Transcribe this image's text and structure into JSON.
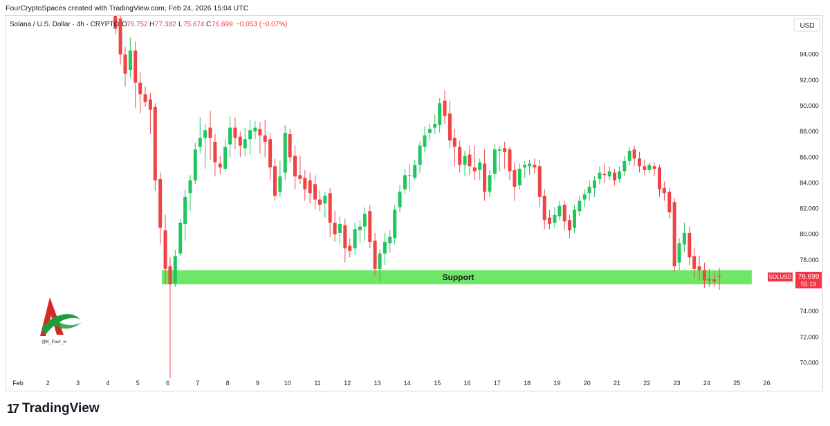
{
  "header": {
    "created_by": "FourCryptoSpaces created with TradingView.com, Feb 24, 2026 15:04 UTC"
  },
  "legend": {
    "symbol": "Solana / U.S. Dollar · 4h · CRYPTO",
    "o_label": "O",
    "o_value": "76.752",
    "h_label": "H",
    "h_value": "77.382",
    "l_label": "L",
    "l_value": "75.674",
    "c_label": "C",
    "c_value": "76.699",
    "change": "−0.053 (−0.07%)"
  },
  "currency_button": "USD",
  "price_tag": {
    "symbol": "SOLUSD",
    "price": "76.699",
    "countdown": "55:19"
  },
  "support_label": "Support",
  "watermark_handle": "@K_Four_iv",
  "footer_brand": "TradingView",
  "colors": {
    "up": "#22c55e",
    "down": "#ef4444",
    "support_zone": "#6ee766",
    "price_tag_bg": "#f23645"
  },
  "chart_data": {
    "type": "candlestick",
    "title": "Solana / U.S. Dollar · 4h · CRYPTO",
    "timeframe": "4h",
    "ylim": [
      69,
      97
    ],
    "y_ticks": [
      "94.000",
      "92.000",
      "90.000",
      "88.000",
      "86.000",
      "84.000",
      "82.000",
      "80.000",
      "78.000",
      "76.000",
      "74.000",
      "72.000",
      "70.000"
    ],
    "x_ticks": [
      "Feb",
      "2",
      "3",
      "4",
      "5",
      "6",
      "7",
      "8",
      "9",
      "10",
      "11",
      "12",
      "13",
      "14",
      "15",
      "16",
      "17",
      "18",
      "19",
      "20",
      "21",
      "22",
      "23",
      "24",
      "25",
      "26"
    ],
    "x_tick_days": [
      1,
      2,
      3,
      4,
      5,
      6,
      7,
      8,
      9,
      10,
      11,
      12,
      13,
      14,
      15,
      16,
      17,
      18,
      19,
      20,
      21,
      22,
      23,
      24,
      25,
      26
    ],
    "support_zone": {
      "low": 76.1,
      "high": 77.2,
      "start_day": 5.8,
      "end_day": 25.5
    },
    "last_price": 76.699,
    "candles": [
      {
        "d": 4.25,
        "o": 97.0,
        "h": 97.0,
        "c": 96.0,
        "l": 95.6
      },
      {
        "d": 4.42,
        "o": 96.8,
        "h": 97.0,
        "c": 94.0,
        "l": 93.2
      },
      {
        "d": 4.58,
        "o": 94.0,
        "h": 94.6,
        "c": 92.5,
        "l": 91.5
      },
      {
        "d": 4.75,
        "o": 92.8,
        "h": 95.3,
        "c": 94.3,
        "l": 92.2
      },
      {
        "d": 4.92,
        "o": 94.3,
        "h": 95.0,
        "c": 91.8,
        "l": 89.8
      },
      {
        "d": 5.08,
        "o": 91.8,
        "h": 92.6,
        "c": 90.9,
        "l": 89.4
      },
      {
        "d": 5.25,
        "o": 90.9,
        "h": 91.5,
        "c": 90.3,
        "l": 89.9
      },
      {
        "d": 5.42,
        "o": 90.5,
        "h": 91.0,
        "c": 89.7,
        "l": 87.8
      },
      {
        "d": 5.58,
        "o": 89.9,
        "h": 90.2,
        "c": 84.2,
        "l": 83.4
      },
      {
        "d": 5.75,
        "o": 84.3,
        "h": 84.8,
        "c": 80.5,
        "l": 79.2
      },
      {
        "d": 5.92,
        "o": 80.3,
        "h": 81.5,
        "c": 77.3,
        "l": 76.1
      },
      {
        "d": 6.08,
        "o": 77.5,
        "h": 78.2,
        "c": 76.1,
        "l": 68.8
      },
      {
        "d": 6.25,
        "o": 76.2,
        "h": 78.8,
        "c": 78.3,
        "l": 75.9
      },
      {
        "d": 6.42,
        "o": 78.5,
        "h": 81.2,
        "c": 80.9,
        "l": 78.3
      },
      {
        "d": 6.58,
        "o": 80.8,
        "h": 83.5,
        "c": 82.9,
        "l": 79.5
      },
      {
        "d": 6.75,
        "o": 83.2,
        "h": 84.6,
        "c": 84.2,
        "l": 81.8
      },
      {
        "d": 6.92,
        "o": 84.2,
        "h": 87.1,
        "c": 86.6,
        "l": 83.9
      },
      {
        "d": 7.08,
        "o": 86.8,
        "h": 89.1,
        "c": 87.5,
        "l": 86.3
      },
      {
        "d": 7.25,
        "o": 87.5,
        "h": 88.6,
        "c": 88.1,
        "l": 85.1
      },
      {
        "d": 7.42,
        "o": 88.3,
        "h": 89.6,
        "c": 87.5,
        "l": 85.8
      },
      {
        "d": 7.58,
        "o": 87.2,
        "h": 87.8,
        "c": 85.6,
        "l": 84.5
      },
      {
        "d": 7.75,
        "o": 85.5,
        "h": 86.1,
        "c": 85.2,
        "l": 84.7
      },
      {
        "d": 7.92,
        "o": 85.1,
        "h": 87.4,
        "c": 86.8,
        "l": 84.9
      },
      {
        "d": 8.08,
        "o": 87.0,
        "h": 89.2,
        "c": 88.3,
        "l": 86.0
      },
      {
        "d": 8.25,
        "o": 88.3,
        "h": 89.1,
        "c": 87.5,
        "l": 86.6
      },
      {
        "d": 8.42,
        "o": 87.6,
        "h": 88.0,
        "c": 86.9,
        "l": 86.0
      },
      {
        "d": 8.58,
        "o": 86.7,
        "h": 88.3,
        "c": 87.4,
        "l": 86.1
      },
      {
        "d": 8.75,
        "o": 87.4,
        "h": 88.9,
        "c": 88.1,
        "l": 86.2
      },
      {
        "d": 8.92,
        "o": 88.0,
        "h": 88.8,
        "c": 88.3,
        "l": 87.4
      },
      {
        "d": 9.08,
        "o": 88.2,
        "h": 88.7,
        "c": 87.7,
        "l": 86.3
      },
      {
        "d": 9.25,
        "o": 87.7,
        "h": 88.9,
        "c": 87.2,
        "l": 86.0
      },
      {
        "d": 9.42,
        "o": 87.4,
        "h": 87.9,
        "c": 85.2,
        "l": 84.2
      },
      {
        "d": 9.58,
        "o": 85.3,
        "h": 85.9,
        "c": 83.0,
        "l": 82.6
      },
      {
        "d": 9.75,
        "o": 83.3,
        "h": 85.7,
        "c": 84.5,
        "l": 82.9
      },
      {
        "d": 9.92,
        "o": 84.8,
        "h": 88.5,
        "c": 87.9,
        "l": 84.2
      },
      {
        "d": 10.08,
        "o": 87.8,
        "h": 88.2,
        "c": 86.0,
        "l": 85.6
      },
      {
        "d": 10.25,
        "o": 86.1,
        "h": 86.9,
        "c": 84.5,
        "l": 83.5
      },
      {
        "d": 10.42,
        "o": 84.6,
        "h": 86.1,
        "c": 84.3,
        "l": 83.9
      },
      {
        "d": 10.58,
        "o": 84.4,
        "h": 85.0,
        "c": 83.5,
        "l": 82.6
      },
      {
        "d": 10.75,
        "o": 84.2,
        "h": 84.8,
        "c": 83.2,
        "l": 82.4
      },
      {
        "d": 10.92,
        "o": 83.9,
        "h": 84.6,
        "c": 82.7,
        "l": 81.9
      },
      {
        "d": 11.08,
        "o": 82.7,
        "h": 83.4,
        "c": 82.3,
        "l": 81.8
      },
      {
        "d": 11.25,
        "o": 82.4,
        "h": 83.3,
        "c": 83.0,
        "l": 81.3
      },
      {
        "d": 11.42,
        "o": 83.2,
        "h": 83.6,
        "c": 80.9,
        "l": 79.8
      },
      {
        "d": 11.58,
        "o": 80.9,
        "h": 81.8,
        "c": 80.0,
        "l": 79.4
      },
      {
        "d": 11.75,
        "o": 80.1,
        "h": 81.4,
        "c": 80.8,
        "l": 79.2
      },
      {
        "d": 11.92,
        "o": 80.7,
        "h": 81.2,
        "c": 78.9,
        "l": 77.8
      },
      {
        "d": 12.08,
        "o": 79.1,
        "h": 79.7,
        "c": 78.7,
        "l": 78.2
      },
      {
        "d": 12.25,
        "o": 78.9,
        "h": 80.9,
        "c": 80.4,
        "l": 78.4
      },
      {
        "d": 12.42,
        "o": 80.3,
        "h": 81.1,
        "c": 80.6,
        "l": 79.3
      },
      {
        "d": 12.58,
        "o": 80.6,
        "h": 82.1,
        "c": 81.6,
        "l": 79.5
      },
      {
        "d": 12.75,
        "o": 81.8,
        "h": 82.3,
        "c": 79.4,
        "l": 78.9
      },
      {
        "d": 12.92,
        "o": 79.5,
        "h": 80.1,
        "c": 77.3,
        "l": 76.8
      },
      {
        "d": 13.08,
        "o": 77.3,
        "h": 78.8,
        "c": 78.5,
        "l": 76.3
      },
      {
        "d": 13.25,
        "o": 78.5,
        "h": 80.1,
        "c": 79.4,
        "l": 77.6
      },
      {
        "d": 13.42,
        "o": 79.3,
        "h": 80.3,
        "c": 79.8,
        "l": 78.6
      },
      {
        "d": 13.58,
        "o": 79.7,
        "h": 82.3,
        "c": 81.9,
        "l": 79.2
      },
      {
        "d": 13.75,
        "o": 82.1,
        "h": 83.8,
        "c": 83.3,
        "l": 81.7
      },
      {
        "d": 13.92,
        "o": 83.5,
        "h": 85.1,
        "c": 84.6,
        "l": 83.1
      },
      {
        "d": 14.08,
        "o": 84.6,
        "h": 85.5,
        "c": 84.6,
        "l": 83.4
      },
      {
        "d": 14.25,
        "o": 84.4,
        "h": 85.8,
        "c": 85.4,
        "l": 84.2
      },
      {
        "d": 14.42,
        "o": 85.4,
        "h": 87.2,
        "c": 86.9,
        "l": 84.8
      },
      {
        "d": 14.58,
        "o": 86.8,
        "h": 88.4,
        "c": 87.7,
        "l": 86.4
      },
      {
        "d": 14.75,
        "o": 87.9,
        "h": 88.6,
        "c": 88.2,
        "l": 87.3
      },
      {
        "d": 14.92,
        "o": 88.3,
        "h": 89.3,
        "c": 88.6,
        "l": 87.8
      },
      {
        "d": 15.08,
        "o": 88.5,
        "h": 90.6,
        "c": 90.2,
        "l": 87.9
      },
      {
        "d": 15.25,
        "o": 90.4,
        "h": 91.2,
        "c": 89.2,
        "l": 88.6
      },
      {
        "d": 15.42,
        "o": 89.4,
        "h": 90.4,
        "c": 87.3,
        "l": 86.7
      },
      {
        "d": 15.58,
        "o": 87.5,
        "h": 88.2,
        "c": 86.8,
        "l": 85.3
      },
      {
        "d": 15.75,
        "o": 86.8,
        "h": 87.3,
        "c": 85.4,
        "l": 84.8
      },
      {
        "d": 15.92,
        "o": 85.4,
        "h": 86.5,
        "c": 86.1,
        "l": 84.5
      },
      {
        "d": 16.08,
        "o": 86.2,
        "h": 86.9,
        "c": 85.3,
        "l": 84.6
      },
      {
        "d": 16.25,
        "o": 85.2,
        "h": 86.9,
        "c": 84.9,
        "l": 84.2
      },
      {
        "d": 16.42,
        "o": 85.0,
        "h": 85.9,
        "c": 85.6,
        "l": 84.2
      },
      {
        "d": 16.58,
        "o": 85.5,
        "h": 86.6,
        "c": 83.3,
        "l": 82.6
      },
      {
        "d": 16.75,
        "o": 83.3,
        "h": 85.0,
        "c": 84.6,
        "l": 82.9
      },
      {
        "d": 16.92,
        "o": 84.7,
        "h": 87.0,
        "c": 86.6,
        "l": 84.2
      },
      {
        "d": 17.08,
        "o": 86.5,
        "h": 86.9,
        "c": 86.6,
        "l": 84.9
      },
      {
        "d": 17.25,
        "o": 86.7,
        "h": 87.2,
        "c": 86.4,
        "l": 85.1
      },
      {
        "d": 17.42,
        "o": 86.6,
        "h": 86.8,
        "c": 84.9,
        "l": 84.2
      },
      {
        "d": 17.58,
        "o": 85.0,
        "h": 85.6,
        "c": 83.7,
        "l": 82.6
      },
      {
        "d": 17.75,
        "o": 83.8,
        "h": 85.5,
        "c": 85.1,
        "l": 83.5
      },
      {
        "d": 17.92,
        "o": 85.2,
        "h": 85.7,
        "c": 85.4,
        "l": 84.4
      },
      {
        "d": 18.08,
        "o": 85.3,
        "h": 85.8,
        "c": 85.5,
        "l": 84.6
      },
      {
        "d": 18.25,
        "o": 85.4,
        "h": 85.9,
        "c": 85.2,
        "l": 84.7
      },
      {
        "d": 18.42,
        "o": 85.3,
        "h": 85.8,
        "c": 82.9,
        "l": 82.1
      },
      {
        "d": 18.58,
        "o": 83.0,
        "h": 83.5,
        "c": 81.1,
        "l": 80.4
      },
      {
        "d": 18.75,
        "o": 81.3,
        "h": 81.9,
        "c": 80.8,
        "l": 80.4
      },
      {
        "d": 18.92,
        "o": 80.9,
        "h": 82.1,
        "c": 81.5,
        "l": 80.5
      },
      {
        "d": 19.08,
        "o": 81.4,
        "h": 82.6,
        "c": 82.2,
        "l": 81.1
      },
      {
        "d": 19.25,
        "o": 82.3,
        "h": 82.6,
        "c": 81.0,
        "l": 80.3
      },
      {
        "d": 19.42,
        "o": 81.1,
        "h": 81.5,
        "c": 80.3,
        "l": 79.7
      },
      {
        "d": 19.58,
        "o": 80.5,
        "h": 82.3,
        "c": 81.9,
        "l": 80.1
      },
      {
        "d": 19.75,
        "o": 81.8,
        "h": 83.0,
        "c": 82.6,
        "l": 81.4
      },
      {
        "d": 19.92,
        "o": 82.7,
        "h": 83.5,
        "c": 83.1,
        "l": 82.1
      },
      {
        "d": 20.08,
        "o": 83.2,
        "h": 84.2,
        "c": 83.7,
        "l": 82.6
      },
      {
        "d": 20.25,
        "o": 83.6,
        "h": 84.5,
        "c": 84.2,
        "l": 82.9
      },
      {
        "d": 20.42,
        "o": 84.3,
        "h": 85.3,
        "c": 84.8,
        "l": 83.9
      },
      {
        "d": 20.58,
        "o": 84.7,
        "h": 85.5,
        "c": 84.6,
        "l": 84.0
      },
      {
        "d": 20.75,
        "o": 84.5,
        "h": 85.3,
        "c": 84.9,
        "l": 84.2
      },
      {
        "d": 20.92,
        "o": 84.8,
        "h": 85.1,
        "c": 84.2,
        "l": 83.8
      },
      {
        "d": 21.08,
        "o": 84.3,
        "h": 85.3,
        "c": 84.9,
        "l": 84.0
      },
      {
        "d": 21.25,
        "o": 84.9,
        "h": 86.1,
        "c": 85.7,
        "l": 84.5
      },
      {
        "d": 21.42,
        "o": 85.7,
        "h": 86.8,
        "c": 86.5,
        "l": 85.4
      },
      {
        "d": 21.58,
        "o": 86.6,
        "h": 86.9,
        "c": 85.9,
        "l": 85.3
      },
      {
        "d": 21.75,
        "o": 85.9,
        "h": 86.4,
        "c": 85.3,
        "l": 84.8
      },
      {
        "d": 21.92,
        "o": 85.3,
        "h": 85.8,
        "c": 85.0,
        "l": 84.6
      },
      {
        "d": 22.08,
        "o": 85.0,
        "h": 85.6,
        "c": 85.4,
        "l": 84.8
      },
      {
        "d": 22.25,
        "o": 85.3,
        "h": 85.6,
        "c": 85.1,
        "l": 84.5
      },
      {
        "d": 22.42,
        "o": 85.2,
        "h": 85.4,
        "c": 83.5,
        "l": 82.9
      },
      {
        "d": 22.58,
        "o": 83.6,
        "h": 84.1,
        "c": 83.2,
        "l": 82.6
      },
      {
        "d": 22.75,
        "o": 83.3,
        "h": 83.6,
        "c": 81.7,
        "l": 81.2
      },
      {
        "d": 22.92,
        "o": 82.5,
        "h": 82.8,
        "c": 77.5,
        "l": 77.0
      },
      {
        "d": 23.08,
        "o": 77.8,
        "h": 79.7,
        "c": 79.3,
        "l": 77.2
      },
      {
        "d": 23.25,
        "o": 79.2,
        "h": 80.9,
        "c": 80.1,
        "l": 78.6
      },
      {
        "d": 23.42,
        "o": 80.1,
        "h": 80.6,
        "c": 78.2,
        "l": 77.6
      },
      {
        "d": 23.58,
        "o": 78.3,
        "h": 78.9,
        "c": 77.3,
        "l": 76.6
      },
      {
        "d": 23.75,
        "o": 77.5,
        "h": 78.3,
        "c": 77.2,
        "l": 76.4
      },
      {
        "d": 23.92,
        "o": 77.2,
        "h": 77.8,
        "c": 76.4,
        "l": 75.8
      },
      {
        "d": 24.08,
        "o": 76.5,
        "h": 77.3,
        "c": 76.4,
        "l": 75.9
      },
      {
        "d": 24.25,
        "o": 76.5,
        "h": 77.0,
        "c": 76.3,
        "l": 75.9
      },
      {
        "d": 24.42,
        "o": 76.752,
        "h": 77.382,
        "c": 76.699,
        "l": 75.674
      }
    ]
  }
}
